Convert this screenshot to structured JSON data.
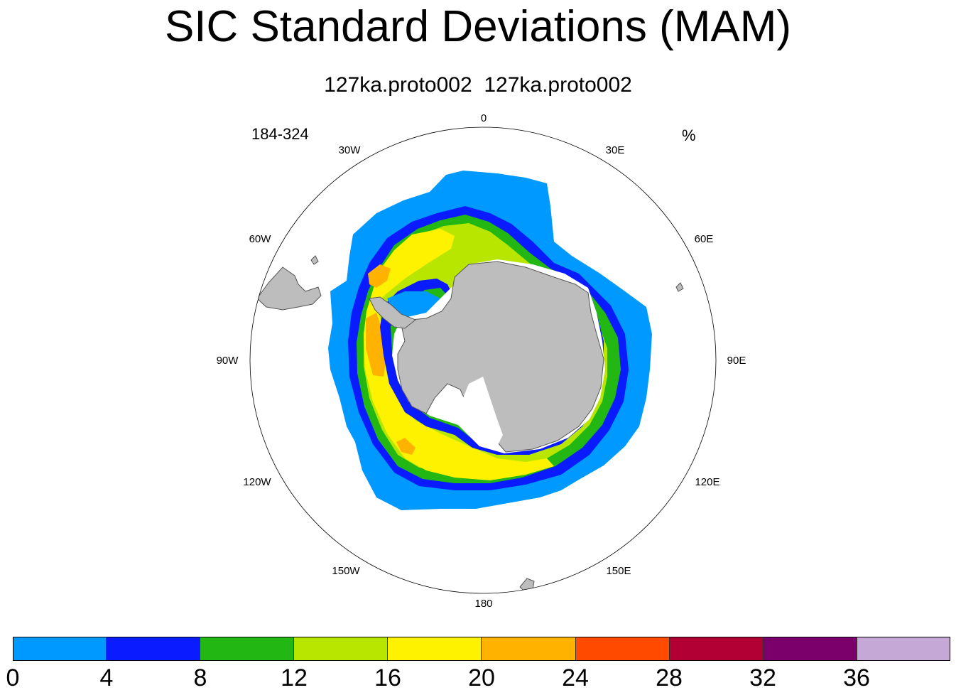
{
  "title": "SIC Standard Deviations (MAM)",
  "subtitle": "127ka.proto002  127ka.proto002",
  "left_label": "184-324",
  "units": "%",
  "longitude_labels": [
    "0",
    "30E",
    "60E",
    "90E",
    "120E",
    "150E",
    "180",
    "150W",
    "120W",
    "90W",
    "60W",
    "30W"
  ],
  "colorbar": {
    "colors": [
      "#0099ff",
      "#0a1cff",
      "#22b713",
      "#b8e600",
      "#fff200",
      "#ffb300",
      "#ff4a00",
      "#b30034",
      "#7b006c",
      "#c5a8d6"
    ],
    "labels": [
      "0",
      "4",
      "8",
      "12",
      "16",
      "20",
      "24",
      "28",
      "32",
      "36"
    ]
  },
  "map_colors": {
    "land": "#bdbdbd",
    "land_outline": "#555555",
    "ocean": "#ffffff",
    "ice_shelf": "#ffffff"
  }
}
